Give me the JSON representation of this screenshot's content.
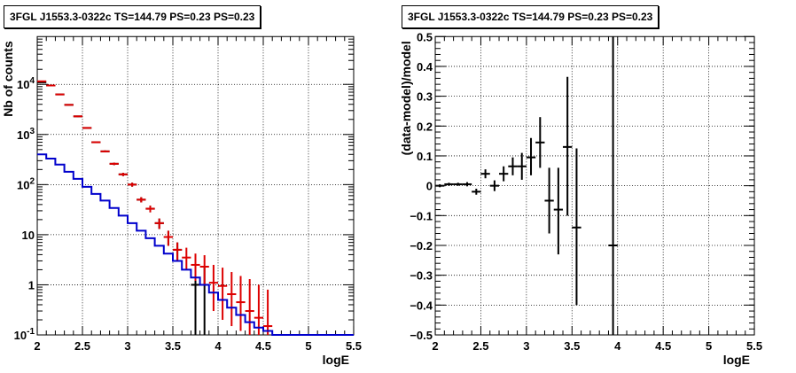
{
  "chart_data": [
    {
      "type": "line",
      "title": "3FGL J1553.3-0322c TS=144.79 PS=0.23 PS=0.23",
      "xlabel": "logE",
      "ylabel": "Nb of counts",
      "xlim": [
        2,
        5.5
      ],
      "ylim": [
        0.1,
        90000
      ],
      "yscale": "log",
      "grid": true,
      "x_ticks": [
        "2",
        "2.5",
        "3",
        "3.5",
        "4",
        "4.5",
        "5",
        "5.5"
      ],
      "y_ticks": [
        "10^-1",
        "1",
        "10",
        "10^2",
        "10^3",
        "10^4"
      ],
      "series": [
        {
          "color": "#000000",
          "style": "points-with-errors",
          "points": [
            {
              "x": 2.05,
              "y": 11000,
              "xerr": 0.05,
              "ylo": 10800,
              "yhi": 11200
            },
            {
              "x": 2.15,
              "y": 9500,
              "xerr": 0.05,
              "ylo": 9300,
              "yhi": 9700
            },
            {
              "x": 2.25,
              "y": 6300,
              "xerr": 0.05,
              "ylo": 6150,
              "yhi": 6450
            },
            {
              "x": 2.35,
              "y": 3900,
              "xerr": 0.05,
              "ylo": 3800,
              "yhi": 4000
            },
            {
              "x": 2.45,
              "y": 2300,
              "xerr": 0.05,
              "ylo": 2230,
              "yhi": 2370
            },
            {
              "x": 2.55,
              "y": 1350,
              "xerr": 0.05,
              "ylo": 1310,
              "yhi": 1390
            },
            {
              "x": 2.65,
              "y": 700,
              "xerr": 0.05,
              "ylo": 675,
              "yhi": 725
            },
            {
              "x": 2.75,
              "y": 460,
              "xerr": 0.05,
              "ylo": 440,
              "yhi": 480
            },
            {
              "x": 2.85,
              "y": 260,
              "xerr": 0.05,
              "ylo": 245,
              "yhi": 275
            },
            {
              "x": 2.95,
              "y": 160,
              "xerr": 0.05,
              "ylo": 148,
              "yhi": 172
            },
            {
              "x": 3.05,
              "y": 100,
              "xerr": 0.05,
              "ylo": 91,
              "yhi": 109
            },
            {
              "x": 3.15,
              "y": 50,
              "xerr": 0.05,
              "ylo": 44,
              "yhi": 56
            },
            {
              "x": 3.25,
              "y": 33,
              "xerr": 0.05,
              "ylo": 28,
              "yhi": 38
            },
            {
              "x": 3.35,
              "y": 17,
              "xerr": 0.05,
              "ylo": 13,
              "yhi": 21
            },
            {
              "x": 3.45,
              "y": 9,
              "xerr": 0.05,
              "ylo": 6,
              "yhi": 12
            },
            {
              "x": 3.55,
              "y": 5,
              "xerr": 0.05,
              "ylo": 3,
              "yhi": 7
            },
            {
              "x": 3.75,
              "y": 1,
              "xerr": 0.05,
              "ylo": 0.1,
              "yhi": 2.3
            },
            {
              "x": 3.85,
              "y": 1,
              "xerr": 0.05,
              "ylo": 0.1,
              "yhi": 2.3
            }
          ]
        },
        {
          "color": "#dd0000",
          "style": "points-with-errors",
          "points": [
            {
              "x": 2.05,
              "y": 11500,
              "xerr": 0.05,
              "ylo": 11300,
              "yhi": 11700
            },
            {
              "x": 2.15,
              "y": 9500,
              "xerr": 0.05,
              "ylo": 9300,
              "yhi": 9700
            },
            {
              "x": 2.25,
              "y": 6300,
              "xerr": 0.05,
              "ylo": 6150,
              "yhi": 6450
            },
            {
              "x": 2.35,
              "y": 3900,
              "xerr": 0.05,
              "ylo": 3800,
              "yhi": 4000
            },
            {
              "x": 2.45,
              "y": 2300,
              "xerr": 0.05,
              "ylo": 2230,
              "yhi": 2370
            },
            {
              "x": 2.55,
              "y": 1350,
              "xerr": 0.05,
              "ylo": 1310,
              "yhi": 1390
            },
            {
              "x": 2.65,
              "y": 700,
              "xerr": 0.05,
              "ylo": 675,
              "yhi": 725
            },
            {
              "x": 2.75,
              "y": 460,
              "xerr": 0.05,
              "ylo": 440,
              "yhi": 480
            },
            {
              "x": 2.85,
              "y": 260,
              "xerr": 0.05,
              "ylo": 245,
              "yhi": 275
            },
            {
              "x": 2.95,
              "y": 160,
              "xerr": 0.05,
              "ylo": 148,
              "yhi": 172
            },
            {
              "x": 3.05,
              "y": 100,
              "xerr": 0.05,
              "ylo": 91,
              "yhi": 109
            },
            {
              "x": 3.15,
              "y": 50,
              "xerr": 0.05,
              "ylo": 44,
              "yhi": 56
            },
            {
              "x": 3.25,
              "y": 33,
              "xerr": 0.05,
              "ylo": 28,
              "yhi": 38
            },
            {
              "x": 3.35,
              "y": 17,
              "xerr": 0.05,
              "ylo": 13,
              "yhi": 21
            },
            {
              "x": 3.45,
              "y": 9,
              "xerr": 0.05,
              "ylo": 6,
              "yhi": 12
            },
            {
              "x": 3.55,
              "y": 5,
              "xerr": 0.05,
              "ylo": 3,
              "yhi": 7
            },
            {
              "x": 3.65,
              "y": 3.5,
              "xerr": 0.05,
              "ylo": 2,
              "yhi": 5.5
            },
            {
              "x": 3.75,
              "y": 2.5,
              "xerr": 0.05,
              "ylo": 1.2,
              "yhi": 4.2
            },
            {
              "x": 3.85,
              "y": 2.3,
              "xerr": 0.05,
              "ylo": 1.0,
              "yhi": 3.9
            },
            {
              "x": 3.95,
              "y": 1.1,
              "xerr": 0.05,
              "ylo": 0.3,
              "yhi": 2.5
            },
            {
              "x": 4.05,
              "y": 0.95,
              "xerr": 0.05,
              "ylo": 0.2,
              "yhi": 2.2
            },
            {
              "x": 4.15,
              "y": 0.65,
              "xerr": 0.05,
              "ylo": 0.15,
              "yhi": 1.8
            },
            {
              "x": 4.25,
              "y": 0.45,
              "xerr": 0.05,
              "ylo": 0.12,
              "yhi": 1.5
            },
            {
              "x": 4.35,
              "y": 0.3,
              "xerr": 0.05,
              "ylo": 0.1,
              "yhi": 1.3
            },
            {
              "x": 4.45,
              "y": 0.22,
              "xerr": 0.05,
              "ylo": 0.1,
              "yhi": 1.0
            },
            {
              "x": 4.55,
              "y": 0.15,
              "xerr": 0.05,
              "ylo": 0.1,
              "yhi": 0.8
            }
          ]
        },
        {
          "color": "#0000cc",
          "style": "step",
          "edges": [
            2.0,
            2.1,
            2.2,
            2.3,
            2.4,
            2.5,
            2.6,
            2.7,
            2.8,
            2.9,
            3.0,
            3.1,
            3.2,
            3.3,
            3.4,
            3.5,
            3.6,
            3.7,
            3.8,
            3.9,
            4.0,
            4.1,
            4.2,
            4.3,
            4.4,
            4.5,
            4.6,
            5.5
          ],
          "values": [
            400,
            330,
            250,
            180,
            130,
            90,
            65,
            48,
            34,
            24,
            17,
            12,
            8.5,
            6,
            4.2,
            3,
            2,
            1.4,
            1.0,
            0.7,
            0.5,
            0.35,
            0.25,
            0.18,
            0.14,
            0.12,
            0.1
          ]
        }
      ]
    },
    {
      "type": "scatter",
      "title": "3FGL J1553.3-0322c TS=144.79 PS=0.23 PS=0.23",
      "xlabel": "logE",
      "ylabel": "(data-model)/model",
      "xlim": [
        2,
        5.5
      ],
      "ylim": [
        -0.5,
        0.5
      ],
      "grid": true,
      "x_ticks": [
        "2",
        "2.5",
        "3",
        "3.5",
        "4",
        "4.5",
        "5",
        "5.5"
      ],
      "y_ticks": [
        "−0.5",
        "−0.4",
        "−0.3",
        "−0.2",
        "−0.1",
        "0",
        "0.1",
        "0.2",
        "0.3",
        "0.4",
        "0.5"
      ],
      "series": [
        {
          "color": "#000000",
          "points": [
            {
              "x": 2.05,
              "y": 0.0,
              "xerr": 0.05,
              "ylo": -0.005,
              "yhi": 0.005
            },
            {
              "x": 2.15,
              "y": 0.005,
              "xerr": 0.05,
              "ylo": 0.0,
              "yhi": 0.01
            },
            {
              "x": 2.25,
              "y": 0.005,
              "xerr": 0.05,
              "ylo": 0.0,
              "yhi": 0.01
            },
            {
              "x": 2.35,
              "y": 0.005,
              "xerr": 0.05,
              "ylo": -0.002,
              "yhi": 0.012
            },
            {
              "x": 2.45,
              "y": -0.02,
              "xerr": 0.05,
              "ylo": -0.03,
              "yhi": -0.01
            },
            {
              "x": 2.55,
              "y": 0.04,
              "xerr": 0.05,
              "ylo": 0.025,
              "yhi": 0.055
            },
            {
              "x": 2.65,
              "y": 0.0,
              "xerr": 0.05,
              "ylo": -0.018,
              "yhi": 0.018
            },
            {
              "x": 2.75,
              "y": 0.04,
              "xerr": 0.05,
              "ylo": 0.015,
              "yhi": 0.065
            },
            {
              "x": 2.85,
              "y": 0.065,
              "xerr": 0.05,
              "ylo": 0.035,
              "yhi": 0.095
            },
            {
              "x": 2.95,
              "y": 0.065,
              "xerr": 0.05,
              "ylo": 0.02,
              "yhi": 0.11
            },
            {
              "x": 3.05,
              "y": 0.095,
              "xerr": 0.05,
              "ylo": 0.035,
              "yhi": 0.16
            },
            {
              "x": 3.15,
              "y": 0.145,
              "xerr": 0.05,
              "ylo": 0.06,
              "yhi": 0.23
            },
            {
              "x": 3.25,
              "y": -0.05,
              "xerr": 0.05,
              "ylo": -0.16,
              "yhi": 0.06
            },
            {
              "x": 3.35,
              "y": -0.08,
              "xerr": 0.05,
              "ylo": -0.23,
              "yhi": 0.06
            },
            {
              "x": 3.45,
              "y": 0.13,
              "xerr": 0.05,
              "ylo": -0.1,
              "yhi": 0.365
            },
            {
              "x": 3.55,
              "y": -0.14,
              "xerr": 0.05,
              "ylo": -0.4,
              "yhi": 0.125
            },
            {
              "x": 3.95,
              "y": -0.2,
              "xerr": 0.05,
              "ylo": -0.5,
              "yhi": 0.5
            }
          ]
        }
      ]
    }
  ]
}
